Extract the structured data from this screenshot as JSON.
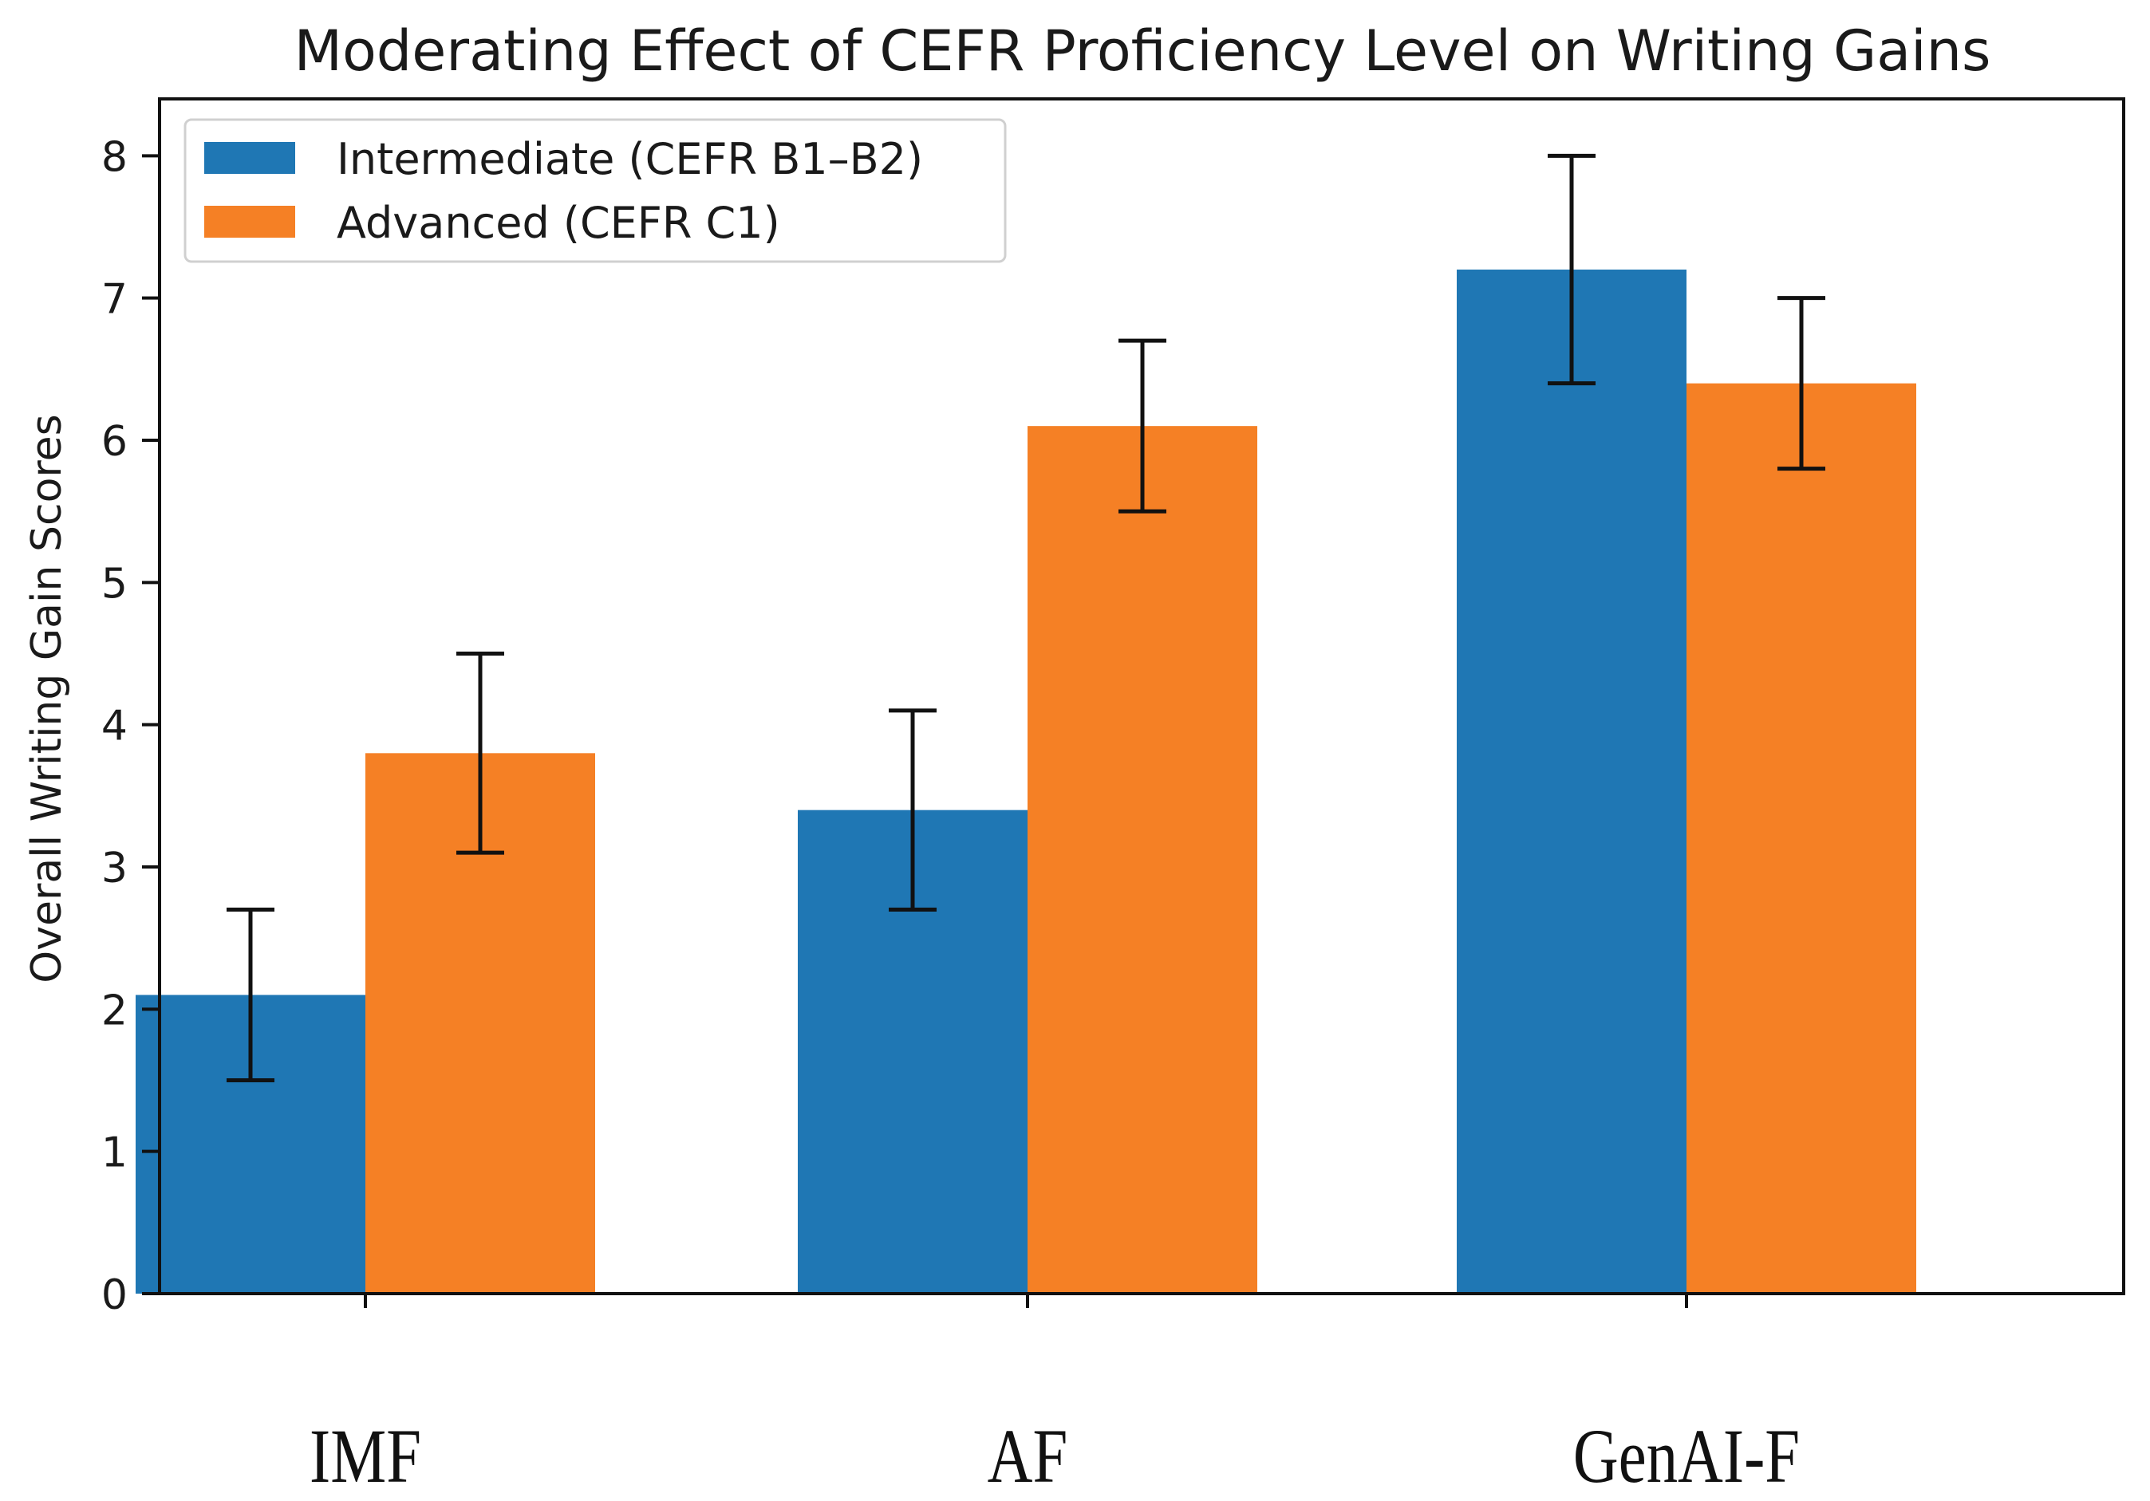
{
  "chart_data": {
    "type": "bar",
    "title": "Moderating Effect of CEFR Proficiency Level on Writing Gains",
    "xlabel": "",
    "ylabel": "Overall Writing Gain Scores",
    "categories": [
      "IMF",
      "AF",
      "GenAI-F"
    ],
    "series": [
      {
        "name": "Intermediate (CEFR B1–B2)",
        "color": "#1f77b4",
        "values": [
          2.1,
          3.4,
          7.2
        ],
        "error_low": [
          1.5,
          2.7,
          6.4
        ],
        "error_high": [
          2.7,
          4.1,
          8.0
        ]
      },
      {
        "name": "Advanced (CEFR C1)",
        "color": "#f58025",
        "values": [
          3.8,
          6.1,
          6.4
        ],
        "error_low": [
          3.1,
          5.5,
          5.8
        ],
        "error_high": [
          4.5,
          6.7,
          7.0
        ]
      }
    ],
    "ylim": [
      0,
      8.4
    ],
    "yticks": [
      "0",
      "1",
      "2",
      "3",
      "4",
      "5",
      "6",
      "7",
      "8"
    ],
    "legend_position": "top-left",
    "grid": false
  }
}
